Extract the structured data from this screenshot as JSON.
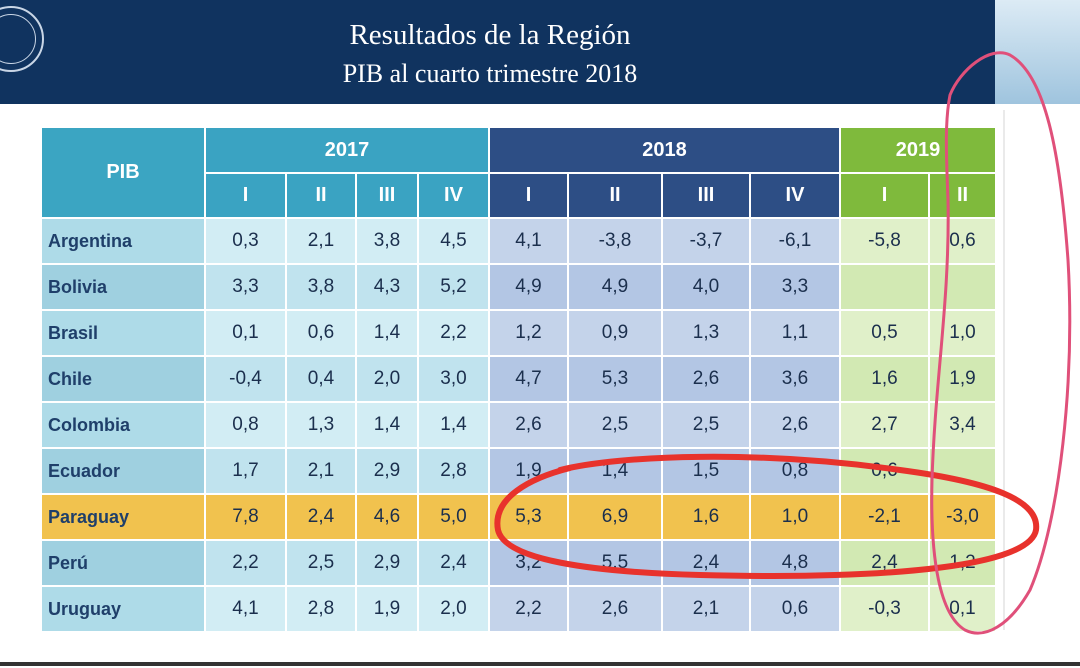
{
  "header": {
    "title": "Resultados de la Región",
    "subtitle": "PIB al cuarto trimestre 2018"
  },
  "table": {
    "row_header": "PIB",
    "years": [
      "2017",
      "2018",
      "2019"
    ],
    "quarters_2017": [
      "I",
      "II",
      "III",
      "IV"
    ],
    "quarters_2018": [
      "I",
      "II",
      "III",
      "IV"
    ],
    "quarters_2019": [
      "I",
      "II"
    ],
    "rows": [
      {
        "country": "Argentina",
        "values": [
          "0,3",
          "2,1",
          "3,8",
          "4,5",
          "4,1",
          "-3,8",
          "-3,7",
          "-6,1",
          "-5,8",
          "0,6"
        ]
      },
      {
        "country": "Bolivia",
        "values": [
          "3,3",
          "3,8",
          "4,3",
          "5,2",
          "4,9",
          "4,9",
          "4,0",
          "3,3",
          "",
          ""
        ]
      },
      {
        "country": "Brasil",
        "values": [
          "0,1",
          "0,6",
          "1,4",
          "2,2",
          "1,2",
          "0,9",
          "1,3",
          "1,1",
          "0,5",
          "1,0"
        ]
      },
      {
        "country": "Chile",
        "values": [
          "-0,4",
          "0,4",
          "2,0",
          "3,0",
          "4,7",
          "5,3",
          "2,6",
          "3,6",
          "1,6",
          "1,9"
        ]
      },
      {
        "country": "Colombia",
        "values": [
          "0,8",
          "1,3",
          "1,4",
          "1,4",
          "2,6",
          "2,5",
          "2,5",
          "2,6",
          "2,7",
          "3,4"
        ]
      },
      {
        "country": "Ecuador",
        "values": [
          "1,7",
          "2,1",
          "2,9",
          "2,8",
          "1,9",
          "1,4",
          "1,5",
          "0,8",
          "0,6",
          ""
        ]
      },
      {
        "country": "Paraguay",
        "values": [
          "7,8",
          "2,4",
          "4,6",
          "5,0",
          "5,3",
          "6,9",
          "1,6",
          "1,0",
          "-2,1",
          "-3,0"
        ]
      },
      {
        "country": "Perú",
        "values": [
          "2,2",
          "2,5",
          "2,9",
          "2,4",
          "3,2",
          "5,5",
          "2,4",
          "4,8",
          "2,4",
          "1,2"
        ]
      },
      {
        "country": "Uruguay",
        "values": [
          "4,1",
          "2,8",
          "1,9",
          "2,0",
          "2,2",
          "2,6",
          "2,1",
          "0,6",
          "-0,3",
          "0,1"
        ]
      }
    ]
  },
  "colors": {
    "header_bg": "#10335f",
    "year_2017": "#3aa3c2",
    "year_2018": "#2d4e85",
    "year_2019": "#7fba3c",
    "highlight_row": "#f1c24e",
    "annotation_red": "#e8322c",
    "annotation_pink": "#e0507a"
  }
}
